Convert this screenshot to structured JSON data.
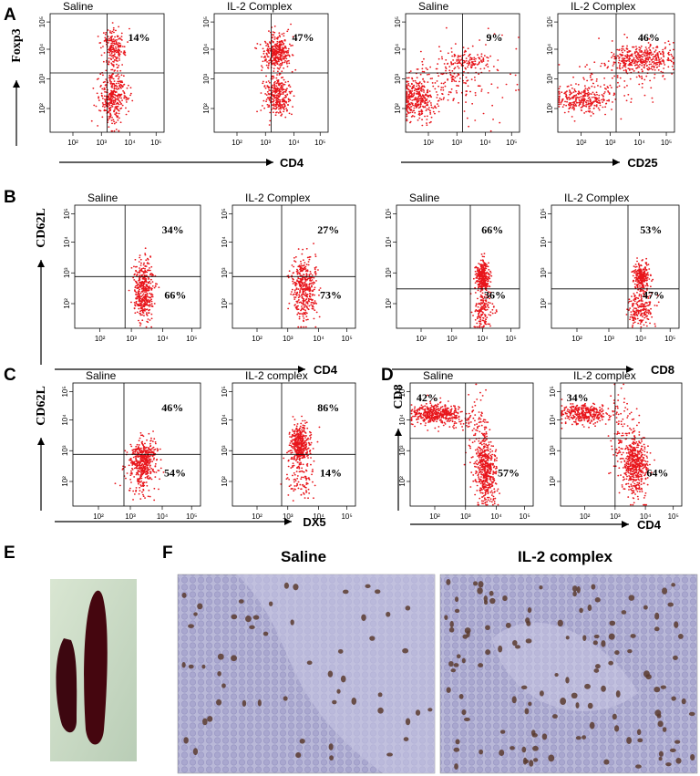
{
  "axis_ticks": [
    "10²",
    "10³",
    "10⁴",
    "10⁵"
  ],
  "panels": [
    {
      "label": "A",
      "y_axis": "Foxp3",
      "groups": [
        {
          "x_axis": "CD4",
          "plots": [
            {
              "title": "Saline",
              "percents": [
                "14%"
              ]
            },
            {
              "title": "IL-2 Complex",
              "percents": [
                "47%"
              ]
            }
          ]
        },
        {
          "x_axis": "CD25",
          "plots": [
            {
              "title": "Saline",
              "percents": [
                "9%"
              ]
            },
            {
              "title": "IL-2 Complex",
              "percents": [
                "46%"
              ]
            }
          ]
        }
      ]
    },
    {
      "label": "B",
      "y_axis": "CD62L",
      "groups": [
        {
          "x_axis": "CD4",
          "plots": [
            {
              "title": "Saline",
              "percents": [
                "34%",
                "66%"
              ]
            },
            {
              "title": "IL-2 Complex",
              "percents": [
                "27%",
                "73%"
              ]
            }
          ]
        },
        {
          "x_axis": "CD8",
          "plots": [
            {
              "title": "Saline",
              "percents": [
                "66%",
                "36%"
              ]
            },
            {
              "title": "IL-2 Complex",
              "percents": [
                "53%",
                "47%"
              ]
            }
          ]
        }
      ]
    },
    {
      "label": "C",
      "y_axis": "CD62L",
      "groups": [
        {
          "x_axis": "DX5",
          "plots": [
            {
              "title": "Saline",
              "percents": [
                "46%",
                "54%"
              ]
            },
            {
              "title": "IL-2 complex",
              "percents": [
                "86%",
                "14%"
              ]
            }
          ]
        }
      ]
    },
    {
      "label": "D",
      "y_axis": "CD8",
      "groups": [
        {
          "x_axis": "CD4",
          "plots": [
            {
              "title": "Saline",
              "percents": [
                "42%",
                "57%"
              ]
            },
            {
              "title": "IL-2 complex",
              "percents": [
                "34%",
                "64%"
              ]
            }
          ]
        }
      ]
    },
    {
      "label": "E"
    },
    {
      "label": "F",
      "images": [
        {
          "title": "Saline"
        },
        {
          "title": "IL-2 complex"
        }
      ]
    }
  ]
}
